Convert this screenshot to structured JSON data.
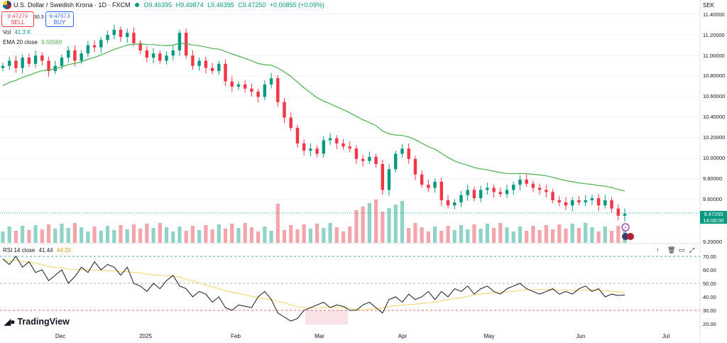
{
  "header": {
    "symbol_title": "U.S. Dollar / Swedish Krona · 1D · FXCM",
    "status_color": "#089981",
    "open": "O9.46395",
    "high": "H9.49874",
    "low": "L9.46395",
    "close": "C9.47250",
    "change": "+0.00855 (+0.09%)",
    "sell_price": "9.47270",
    "sell_label": "SELL",
    "spread": "30.3",
    "buy_price": "9.47573",
    "buy_label": "BUY"
  },
  "indicators": {
    "vol_label": "Vol",
    "vol_value": "41.3 K",
    "ema_label": "EMA 20 close",
    "ema_value": "9.55569",
    "rsi_label": "RSI 14 close",
    "rsi_value": "41.44",
    "rsi_ma_value": "44.20"
  },
  "currency": "SEK",
  "last_price_tag": "9.47250",
  "countdown_tag": "14:08:00",
  "branding": "TradingView",
  "colors": {
    "up": "#089981",
    "down": "#f23645",
    "ema": "#4caf50",
    "rsi": "#131722",
    "rsi_ma": "#f5d76e"
  },
  "chart_data": [
    {
      "type": "candlestick",
      "title": "U.S. Dollar / Swedish Krona · 1D · FXCM",
      "x_labels": [
        "Dec",
        "2025",
        "Feb",
        "Mar",
        "Apr",
        "May",
        "Jun",
        "Jul"
      ],
      "y_ticks": [
        "11.40000",
        "11.20000",
        "11.00000",
        "10.80000",
        "10.60000",
        "10.40000",
        "10.20000",
        "10.00000",
        "9.80000",
        "9.60000",
        "9.20000"
      ],
      "ylim": [
        9.2,
        11.4
      ],
      "close_path": [
        10.9,
        10.95,
        10.88,
        10.98,
        10.92,
        11.0,
        10.95,
        10.85,
        10.9,
        10.98,
        11.05,
        10.95,
        11.02,
        11.1,
        11.08,
        11.15,
        11.2,
        11.25,
        11.18,
        11.22,
        11.12,
        11.05,
        10.98,
        11.02,
        10.95,
        11.0,
        11.05,
        11.22,
        11.0,
        10.9,
        10.95,
        10.88,
        10.85,
        10.92,
        10.75,
        10.7,
        10.72,
        10.68,
        10.65,
        10.6,
        10.72,
        10.78,
        10.55,
        10.4,
        10.3,
        10.15,
        10.08,
        10.1,
        10.05,
        10.18,
        10.2,
        10.15,
        10.12,
        10.1,
        10.0,
        9.98,
        10.02,
        9.95,
        9.7,
        9.9,
        10.05,
        10.1,
        10.0,
        9.85,
        9.75,
        9.72,
        9.78,
        9.6,
        9.55,
        9.58,
        9.65,
        9.7,
        9.62,
        9.7,
        9.72,
        9.68,
        9.66,
        9.7,
        9.75,
        9.8,
        9.76,
        9.72,
        9.7,
        9.68,
        9.6,
        9.58,
        9.55,
        9.6,
        9.58,
        9.6,
        9.62,
        9.55,
        9.6,
        9.52,
        9.45,
        9.47
      ],
      "last": 9.4725,
      "ema20_last": 9.55569,
      "volume_last": "41.3 K"
    },
    {
      "type": "line",
      "title": "RSI 14 close",
      "y_ticks": [
        "70.00",
        "60.00",
        "50.00",
        "40.00",
        "30.00",
        "20.00"
      ],
      "ylim": [
        16,
        72
      ],
      "bands": [
        30,
        50,
        70
      ],
      "rsi_values": [
        68,
        64,
        70,
        62,
        66,
        58,
        60,
        52,
        56,
        60,
        50,
        55,
        62,
        58,
        66,
        60,
        64,
        62,
        56,
        62,
        50,
        48,
        44,
        50,
        46,
        52,
        56,
        48,
        46,
        40,
        44,
        42,
        36,
        40,
        32,
        30,
        34,
        33,
        32,
        40,
        44,
        38,
        28,
        25,
        22,
        24,
        30,
        32,
        34,
        36,
        32,
        34,
        33,
        30,
        30,
        34,
        36,
        32,
        28,
        38,
        40,
        36,
        42,
        38,
        40,
        44,
        38,
        44,
        40,
        46,
        44,
        48,
        42,
        46,
        48,
        44,
        42,
        46,
        48,
        50,
        46,
        44,
        42,
        44,
        46,
        42,
        44,
        42,
        46,
        48,
        44,
        46,
        40,
        42,
        41,
        41.44
      ],
      "last": 41.44,
      "ma_last": 44.2
    }
  ]
}
